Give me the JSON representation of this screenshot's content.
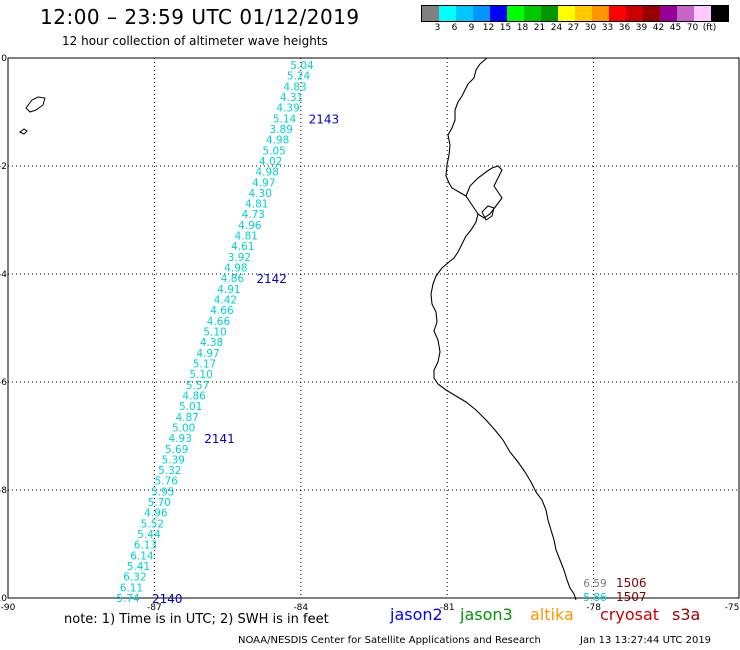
{
  "header": {
    "title": "12:00 – 23:59 UTC 01/12/2019",
    "subtitle": "12 hour collection of altimeter wave heights"
  },
  "legend": {
    "unit": "(ft)",
    "bins": [
      {
        "label": "",
        "color": "#808080"
      },
      {
        "label": "3",
        "color": "#00ffff"
      },
      {
        "label": "6",
        "color": "#00c8ff"
      },
      {
        "label": "9",
        "color": "#0096ff"
      },
      {
        "label": "12",
        "color": "#0000ff"
      },
      {
        "label": "15",
        "color": "#00ff00"
      },
      {
        "label": "18",
        "color": "#00c800"
      },
      {
        "label": "21",
        "color": "#009600"
      },
      {
        "label": "24",
        "color": "#ffff00"
      },
      {
        "label": "27",
        "color": "#ffc800"
      },
      {
        "label": "30",
        "color": "#ff9600"
      },
      {
        "label": "33",
        "color": "#ff0000"
      },
      {
        "label": "36",
        "color": "#c80000"
      },
      {
        "label": "39",
        "color": "#960000"
      },
      {
        "label": "42",
        "color": "#960096"
      },
      {
        "label": "45",
        "color": "#c864c8"
      },
      {
        "label": "70",
        "color": "#ffc8ff"
      },
      {
        "label": "",
        "color": "#000000"
      }
    ]
  },
  "map": {
    "lon_range": [
      -90,
      -75
    ],
    "lat_range": [
      -10,
      0
    ],
    "x_ticks": [
      "-90",
      "-87",
      "-84",
      "-81",
      "-78",
      "-75"
    ],
    "y_ticks": [
      "0",
      "-2",
      "-4",
      "-6",
      "-8",
      "-10"
    ],
    "coast_color": "#000000",
    "grid_color": "#000000"
  },
  "track": {
    "color": "#00d2d2",
    "values": [
      "5.04",
      "5.24",
      "4.83",
      "4.31",
      "4.39",
      "5.14",
      "3.89",
      "4.98",
      "5.05",
      "4.02",
      "4.98",
      "4.97",
      "4.30",
      "4.81",
      "4.73",
      "4.96",
      "4.81",
      "4.61",
      "3.92",
      "4.98",
      "4.86",
      "4.91",
      "4.42",
      "4.66",
      "4.66",
      "5.10",
      "4.38",
      "4.97",
      "5.17",
      "5.10",
      "5.57",
      "4.86",
      "5.01",
      "4.87",
      "5.00",
      "4.93",
      "5.69",
      "5.39",
      "5.32",
      "5.76",
      "5.95",
      "5.70",
      "4.96",
      "5.52",
      "5.44",
      "6.13",
      "6.14",
      "5.41",
      "6.32",
      "6.11",
      "5.74"
    ],
    "time_labels": [
      {
        "text": "2143",
        "index": 5
      },
      {
        "text": "2142",
        "index": 20
      },
      {
        "text": "2141",
        "index": 35
      },
      {
        "text": "2140",
        "index": 50
      }
    ],
    "time_color": "#0000c8"
  },
  "corner": {
    "values": [
      "6.59",
      "5.86"
    ],
    "value_colors": [
      "#808080",
      "#00d2d2"
    ],
    "times": [
      "1506",
      "1507"
    ],
    "time_color": "#800000"
  },
  "footer": {
    "note": "note:  1) Time is in UTC;  2) SWH is in feet",
    "satellites": [
      {
        "name": "jason2",
        "color": "#0000ff"
      },
      {
        "name": "jason3",
        "color": "#009600"
      },
      {
        "name": "altika",
        "color": "#ff9600"
      },
      {
        "name": "cryosat",
        "color": "#c80000"
      },
      {
        "name": "s3a",
        "color": "#960000"
      }
    ],
    "credit": "NOAA/NESDIS Center for Satellite Applications and Research",
    "timestamp": "Jan 13 13:27:44 UTC 2019"
  }
}
